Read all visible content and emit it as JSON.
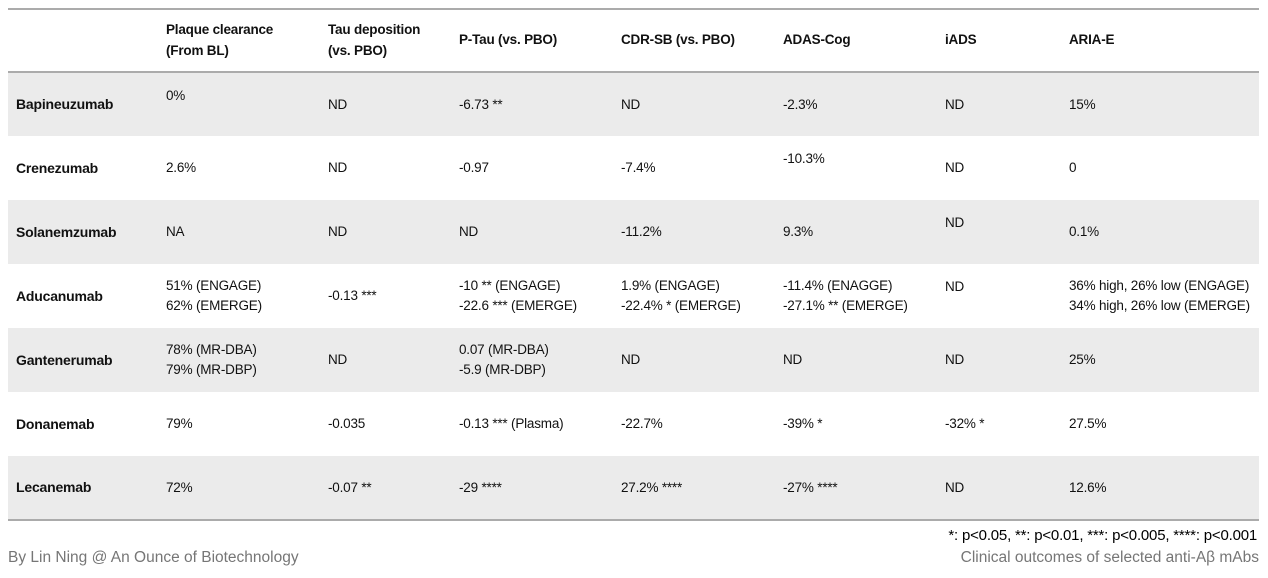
{
  "chart_data": {
    "type": "table",
    "title": "Clinical outcomes of selected anti-Aβ mAbs",
    "columns": [
      "",
      "Plaque clearance\n(From BL)",
      "Tau deposition\n(vs. PBO)",
      "P-Tau (vs. PBO)",
      "CDR-SB (vs. PBO)",
      "ADAS-Cog",
      "iADS",
      "ARIA-E"
    ],
    "rows": [
      [
        "Bapineuzumab",
        "0%",
        "ND",
        "-6.73 **",
        "ND",
        "-2.3%",
        "ND",
        "15%"
      ],
      [
        "Crenezumab",
        "2.6%",
        "ND",
        "-0.97",
        "-7.4%",
        "-10.3%",
        "ND",
        "0"
      ],
      [
        "Solanemzumab",
        "NA",
        "ND",
        "ND",
        "-11.2%",
        "9.3%",
        "ND",
        "0.1%"
      ],
      [
        "Aducanumab",
        "51% (ENGAGE)\n62% (EMERGE)",
        "-0.13 ***",
        "-10 ** (ENGAGE)\n-22.6 *** (EMERGE)",
        "1.9% (ENGAGE)\n-22.4% * (EMERGE)",
        "-11.4% (ENAGGE)\n-27.1% ** (EMERGE)",
        "ND",
        "36% high, 26% low (ENGAGE)\n34% high, 26% low (EMERGE)"
      ],
      [
        "Gantenerumab",
        "78% (MR-DBA)\n79% (MR-DBP)",
        "ND",
        "0.07 (MR-DBA)\n-5.9 (MR-DBP)",
        "ND",
        "ND",
        "ND",
        "25%"
      ],
      [
        "Donanemab",
        "79%",
        "-0.035",
        "-0.13 *** (Plasma)",
        "-22.7%",
        "-39% *",
        "-32% *",
        "27.5%"
      ],
      [
        "Lecanemab",
        "72%",
        "-0.07 **",
        "-29 ****",
        "27.2% ****",
        "-27% ****",
        "ND",
        "12.6%"
      ]
    ],
    "layout": {
      "striped": true,
      "stripe_rows": "odd",
      "grid": "horizontal-borders-only"
    }
  },
  "footnote": "*: p<0.05, **: p<0.01, ***: p<0.005, ****: p<0.001",
  "credit": "By Lin Ning @ An Ounce of Biotechnology",
  "colors": {
    "row_stripe": "#ebebeb",
    "border": "#ababab",
    "muted_text": "#767676",
    "text": "#111111",
    "background": "#ffffff"
  }
}
